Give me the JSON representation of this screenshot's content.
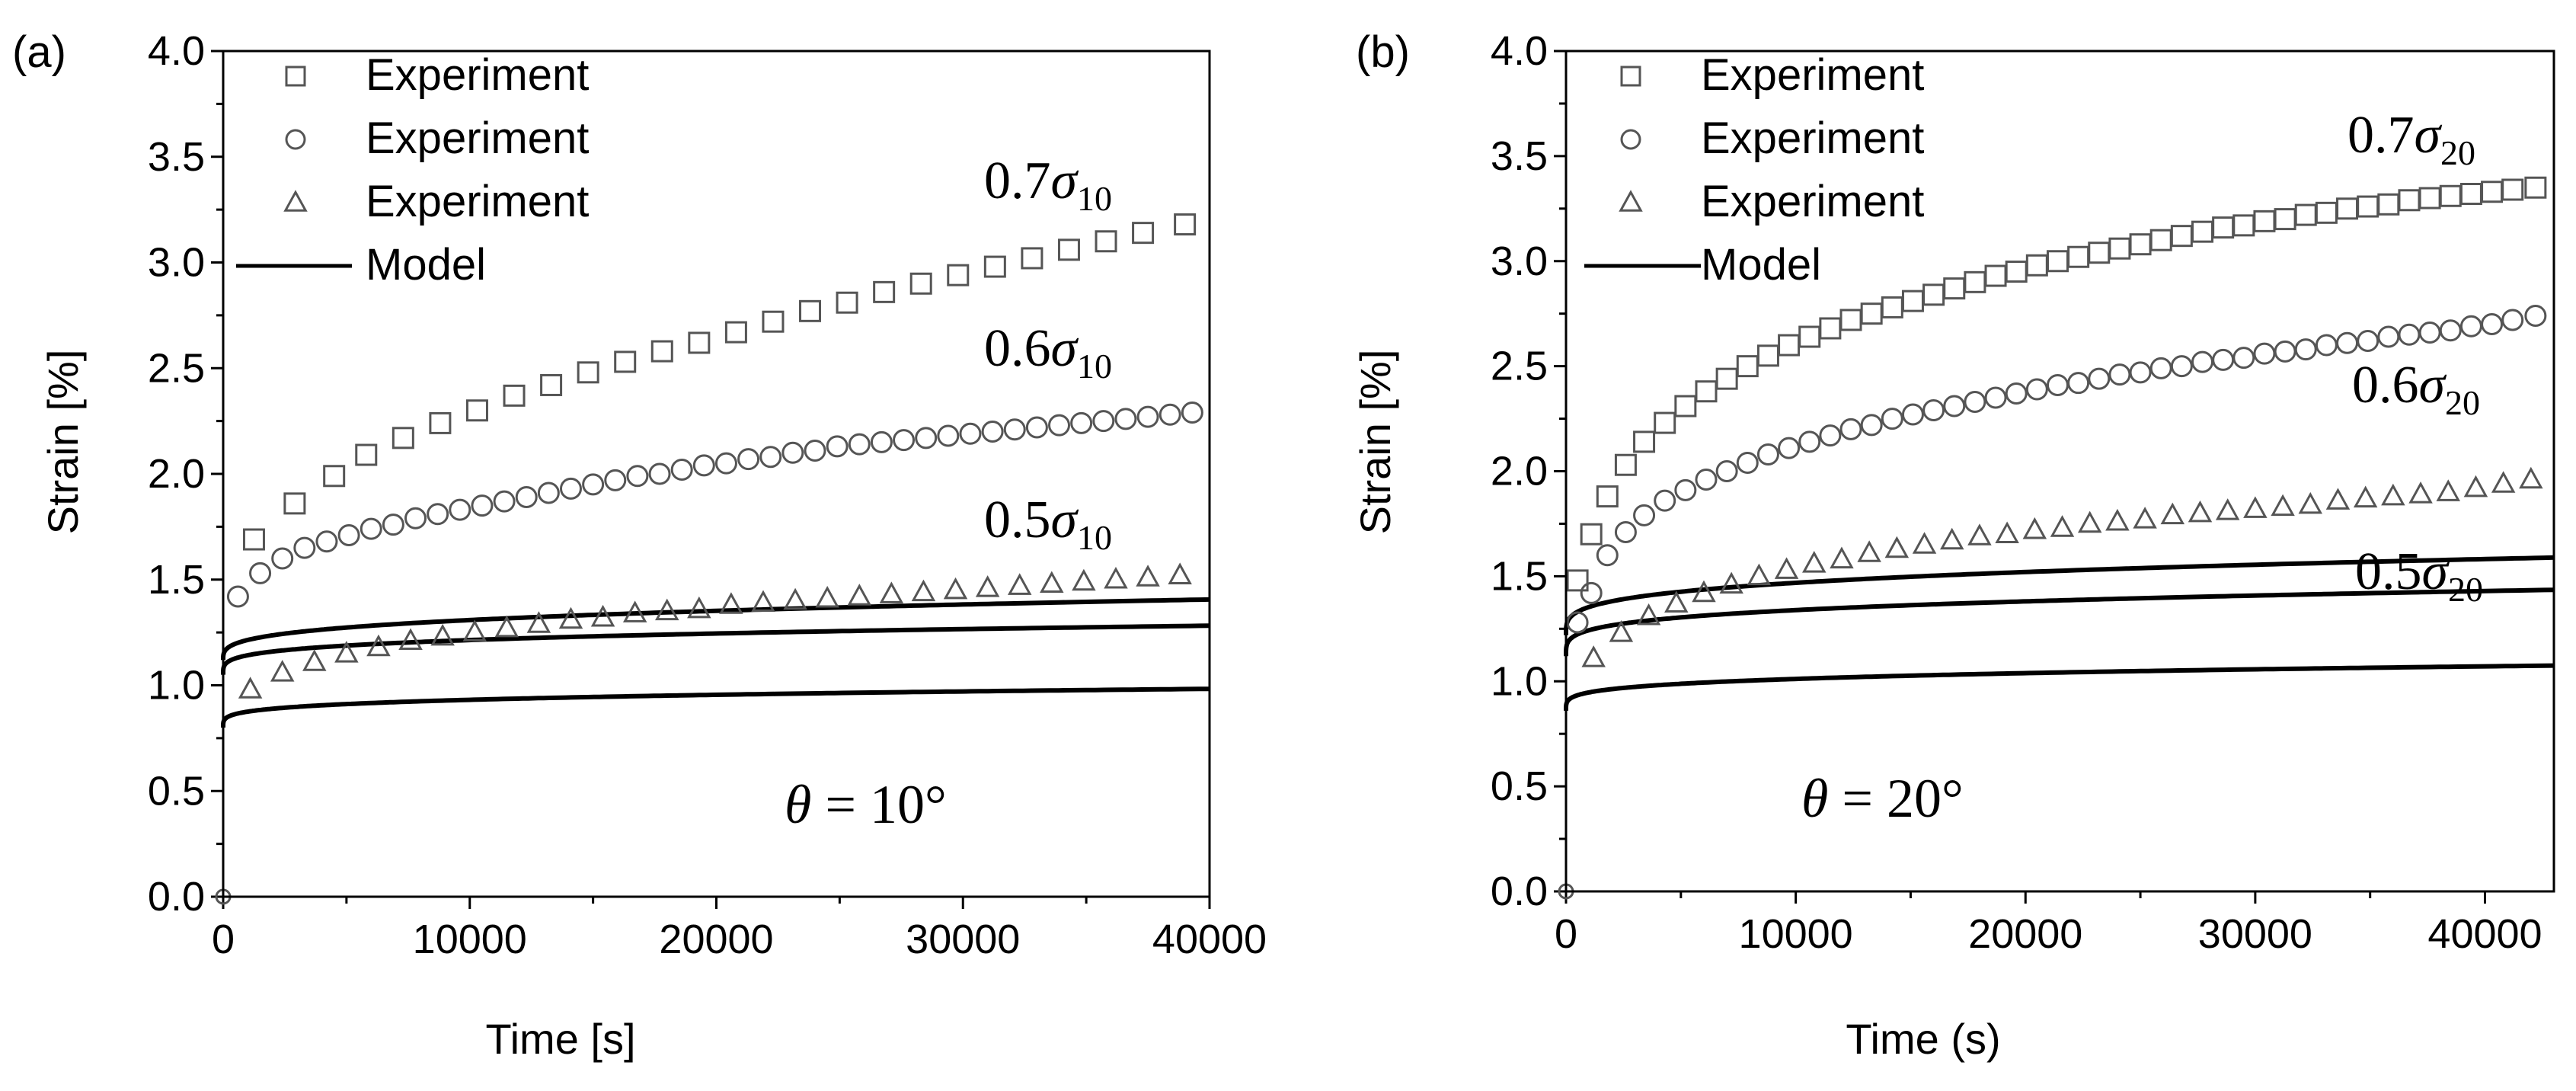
{
  "colors": {
    "marker": "#555555",
    "line": "#000000",
    "background": "#ffffff"
  },
  "chart_data": [
    {
      "panel": "(a)",
      "type": "scatter",
      "xlabel": "Time [s]",
      "ylabel": "Strain [%]",
      "xlim": [
        0,
        40000
      ],
      "ylim": [
        0,
        4.0
      ],
      "xticks": [
        "0",
        "10000",
        "20000",
        "30000",
        "40000"
      ],
      "yticks": [
        "0.0",
        "0.5",
        "1.0",
        "1.5",
        "2.0",
        "2.5",
        "3.0",
        "3.5",
        "4.0"
      ],
      "annotation": {
        "prefix": "θ",
        "suffix": " = 10°"
      },
      "legend": [
        {
          "marker": "square",
          "label": "Experiment"
        },
        {
          "marker": "circle",
          "label": "Experiment"
        },
        {
          "marker": "triangle",
          "label": "Experiment"
        },
        {
          "marker": "line",
          "label": "Model"
        }
      ],
      "series": [
        {
          "name": "0.7σ10",
          "label_coef": "0.7",
          "label_sub": "10",
          "marker": "square",
          "experiment": {
            "x": [
              1250,
              2900,
              4500,
              5800,
              7300,
              8800,
              10300,
              11800,
              13300,
              14800,
              16300,
              17800,
              19300,
              20800,
              22300,
              23800,
              25300,
              26800,
              28300,
              29800,
              31300,
              32800,
              34300,
              35800,
              37300,
              39000
            ],
            "y": [
              1.69,
              1.86,
              1.99,
              2.09,
              2.17,
              2.24,
              2.3,
              2.37,
              2.42,
              2.48,
              2.53,
              2.58,
              2.62,
              2.67,
              2.72,
              2.77,
              2.81,
              2.86,
              2.9,
              2.94,
              2.98,
              3.02,
              3.06,
              3.1,
              3.14,
              3.18
            ]
          },
          "model": {
            "a": 1.12,
            "k": 0.0119,
            "n": 0.3
          }
        },
        {
          "name": "0.6σ10",
          "label_coef": "0.6",
          "label_sub": "10",
          "marker": "circle",
          "experiment": {
            "x": [
              600,
              1500,
              2400,
              3300,
              4200,
              5100,
              6000,
              6900,
              7800,
              8700,
              9600,
              10500,
              11400,
              12300,
              13200,
              14100,
              15000,
              15900,
              16800,
              17700,
              18600,
              19500,
              20400,
              21300,
              22200,
              23100,
              24000,
              24900,
              25800,
              26700,
              27600,
              28500,
              29400,
              30300,
              31200,
              32100,
              33000,
              33900,
              34800,
              35700,
              36600,
              37500,
              38400,
              39300
            ],
            "y": [
              1.42,
              1.53,
              1.6,
              1.65,
              1.68,
              1.71,
              1.74,
              1.76,
              1.79,
              1.81,
              1.83,
              1.85,
              1.87,
              1.89,
              1.91,
              1.93,
              1.95,
              1.97,
              1.99,
              2.0,
              2.02,
              2.04,
              2.05,
              2.07,
              2.08,
              2.1,
              2.11,
              2.13,
              2.14,
              2.15,
              2.16,
              2.17,
              2.18,
              2.19,
              2.2,
              2.21,
              2.22,
              2.23,
              2.24,
              2.25,
              2.26,
              2.27,
              2.28,
              2.29
            ]
          },
          "model": {
            "a": 1.05,
            "k": 0.0164,
            "n": 0.25
          }
        },
        {
          "name": "0.5σ10",
          "label_coef": "0.5",
          "label_sub": "10",
          "marker": "triangle",
          "experiment": {
            "x": [
              1100,
              2400,
              3700,
              5000,
              6300,
              7600,
              8900,
              10200,
              11500,
              12800,
              14100,
              15400,
              16700,
              18000,
              19300,
              20600,
              21900,
              23200,
              24500,
              25800,
              27100,
              28400,
              29700,
              31000,
              32300,
              33600,
              34900,
              36200,
              37500,
              38800
            ],
            "y": [
              0.98,
              1.06,
              1.11,
              1.15,
              1.18,
              1.21,
              1.23,
              1.25,
              1.27,
              1.29,
              1.31,
              1.32,
              1.34,
              1.35,
              1.36,
              1.38,
              1.39,
              1.4,
              1.41,
              1.42,
              1.43,
              1.44,
              1.45,
              1.46,
              1.47,
              1.48,
              1.49,
              1.5,
              1.51,
              1.52
            ]
          },
          "model": {
            "a": 0.8,
            "k": 0.0144,
            "n": 0.24
          }
        }
      ]
    },
    {
      "panel": "(b)",
      "type": "scatter",
      "xlabel": "Time (s)",
      "ylabel": "Strain [%]",
      "xlim": [
        0,
        43000
      ],
      "ylim": [
        0,
        4.0
      ],
      "xticks": [
        "0",
        "10000",
        "20000",
        "30000",
        "40000"
      ],
      "yticks": [
        "0.0",
        "0.5",
        "1.0",
        "1.5",
        "2.0",
        "2.5",
        "3.0",
        "3.5",
        "4.0"
      ],
      "annotation": {
        "prefix": "θ",
        "suffix": " = 20°"
      },
      "legend": [
        {
          "marker": "square",
          "label": "Experiment"
        },
        {
          "marker": "circle",
          "label": " Experiment"
        },
        {
          "marker": "triangle",
          "label": " Experiment"
        },
        {
          "marker": "line",
          "label": "Model"
        }
      ],
      "series": [
        {
          "name": "0.7σ20",
          "label_coef": "0.7",
          "label_sub": "20",
          "marker": "square",
          "experiment": {
            "x": [
              500,
              1100,
              1800,
              2600,
              3400,
              4300,
              5200,
              6100,
              7000,
              7900,
              8800,
              9700,
              10600,
              11500,
              12400,
              13300,
              14200,
              15100,
              16000,
              16900,
              17800,
              18700,
              19600,
              20500,
              21400,
              22300,
              23200,
              24100,
              25000,
              25900,
              26800,
              27700,
              28600,
              29500,
              30400,
              31300,
              32200,
              33100,
              34000,
              34900,
              35800,
              36700,
              37600,
              38500,
              39400,
              40300,
              41200,
              42200
            ],
            "y": [
              1.48,
              1.7,
              1.88,
              2.03,
              2.14,
              2.23,
              2.31,
              2.38,
              2.44,
              2.5,
              2.55,
              2.6,
              2.64,
              2.68,
              2.72,
              2.75,
              2.78,
              2.81,
              2.84,
              2.87,
              2.9,
              2.93,
              2.95,
              2.98,
              3.0,
              3.02,
              3.04,
              3.06,
              3.08,
              3.1,
              3.12,
              3.14,
              3.16,
              3.17,
              3.19,
              3.2,
              3.22,
              3.23,
              3.25,
              3.26,
              3.27,
              3.29,
              3.3,
              3.31,
              3.32,
              3.33,
              3.34,
              3.35
            ]
          },
          "model": {
            "a": 1.22,
            "k": 0.0207,
            "n": 0.27
          }
        },
        {
          "name": "0.6σ20",
          "label_coef": "0.6",
          "label_sub": "20",
          "marker": "circle",
          "experiment": {
            "x": [
              500,
              1100,
              1800,
              2600,
              3400,
              4300,
              5200,
              6100,
              7000,
              7900,
              8800,
              9700,
              10600,
              11500,
              12400,
              13300,
              14200,
              15100,
              16000,
              16900,
              17800,
              18700,
              19600,
              20500,
              21400,
              22300,
              23200,
              24100,
              25000,
              25900,
              26800,
              27700,
              28600,
              29500,
              30400,
              31300,
              32200,
              33100,
              34000,
              34900,
              35800,
              36700,
              37600,
              38500,
              39400,
              40300,
              41200,
              42200
            ],
            "y": [
              1.28,
              1.42,
              1.6,
              1.71,
              1.79,
              1.86,
              1.91,
              1.96,
              2.0,
              2.04,
              2.08,
              2.11,
              2.14,
              2.17,
              2.2,
              2.22,
              2.25,
              2.27,
              2.29,
              2.31,
              2.33,
              2.35,
              2.37,
              2.39,
              2.41,
              2.42,
              2.44,
              2.46,
              2.47,
              2.49,
              2.5,
              2.52,
              2.53,
              2.54,
              2.56,
              2.57,
              2.58,
              2.6,
              2.61,
              2.62,
              2.64,
              2.65,
              2.66,
              2.67,
              2.69,
              2.7,
              2.72,
              2.74
            ]
          },
          "model": {
            "a": 1.12,
            "k": 0.0219,
            "n": 0.25
          }
        },
        {
          "name": "0.5σ20",
          "label_coef": "0.5",
          "label_sub": "20",
          "marker": "triangle",
          "experiment": {
            "x": [
              1200,
              2400,
              3600,
              4800,
              6000,
              7200,
              8400,
              9600,
              10800,
              12000,
              13200,
              14400,
              15600,
              16800,
              18000,
              19200,
              20400,
              21600,
              22800,
              24000,
              25200,
              26400,
              27600,
              28800,
              30000,
              31200,
              32400,
              33600,
              34800,
              36000,
              37200,
              38400,
              39600,
              40800,
              42000
            ],
            "y": [
              1.11,
              1.23,
              1.31,
              1.37,
              1.42,
              1.46,
              1.5,
              1.53,
              1.56,
              1.58,
              1.61,
              1.63,
              1.65,
              1.67,
              1.69,
              1.7,
              1.72,
              1.73,
              1.75,
              1.76,
              1.77,
              1.79,
              1.8,
              1.81,
              1.82,
              1.83,
              1.84,
              1.86,
              1.87,
              1.88,
              1.89,
              1.9,
              1.92,
              1.94,
              1.96
            ]
          },
          "model": {
            "a": 0.86,
            "k": 0.0166,
            "n": 0.24
          }
        }
      ]
    }
  ]
}
